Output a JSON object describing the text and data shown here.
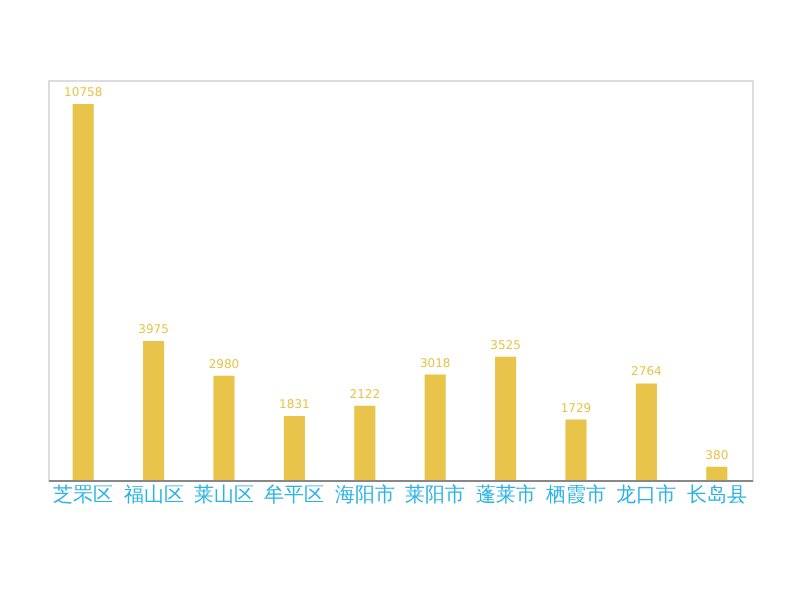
{
  "chart_data": {
    "type": "bar",
    "categories": [
      "芝罘区",
      "福山区",
      "莱山区",
      "牟平区",
      "海阳市",
      "莱阳市",
      "蓬莱市",
      "栖霞市",
      "龙口市",
      "长岛县"
    ],
    "series": [
      {
        "color": "#e9c44a",
        "values": [
          10758,
          3975,
          2980,
          1831,
          2122,
          3018,
          3525,
          1729,
          2764,
          380
        ]
      }
    ],
    "data_labels": true
  }
}
